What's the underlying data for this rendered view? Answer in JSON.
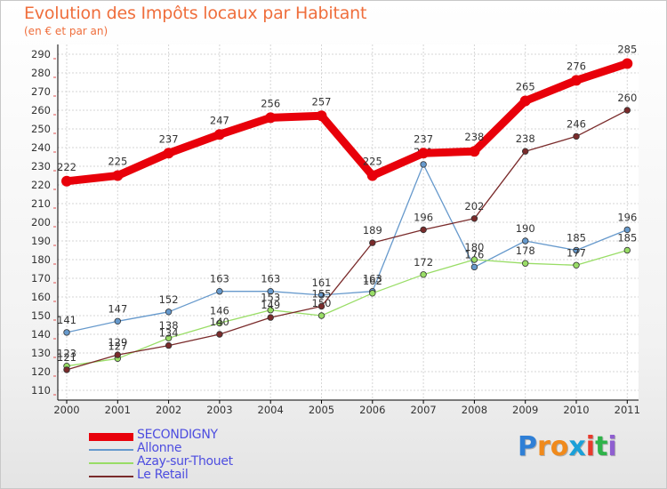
{
  "chart_data": {
    "type": "line",
    "title": "Evolution des Impôts locaux par Habitant",
    "subtitle": "(en € et par an)",
    "xlabel": "",
    "ylabel": "",
    "ylim": [
      110,
      290
    ],
    "ytick_step": 10,
    "grid": true,
    "categories": [
      "2000",
      "2001",
      "2002",
      "2003",
      "2004",
      "2005",
      "2006",
      "2007",
      "2008",
      "2009",
      "2010",
      "2011"
    ],
    "series": [
      {
        "name": "SECONDIGNY",
        "color": "#e8000a",
        "values": [
          222,
          225,
          237,
          247,
          256,
          257,
          225,
          237,
          238,
          265,
          276,
          285
        ]
      },
      {
        "name": "Allonne",
        "color": "#6699cc",
        "values": [
          141,
          147,
          152,
          163,
          163,
          161,
          163,
          231,
          176,
          190,
          185,
          196
        ]
      },
      {
        "name": "Azay-sur-Thouet",
        "color": "#99dd66",
        "values": [
          123,
          127,
          138,
          146,
          153,
          150,
          162,
          172,
          180,
          178,
          177,
          185
        ]
      },
      {
        "name": "Le Retail",
        "color": "#7a2b2b",
        "values": [
          121,
          129,
          134,
          140,
          149,
          155,
          189,
          196,
          202,
          238,
          246,
          260
        ]
      }
    ],
    "legend_position": "bottom-left"
  },
  "brand": {
    "letters": [
      "P",
      "r",
      "o",
      "x",
      "i",
      "t",
      "i"
    ],
    "colors": [
      "#2f7fd6",
      "#f08a1c",
      "#f08a1c",
      "#1ba0d8",
      "#e83a2c",
      "#2fb34a",
      "#8f5fd0"
    ]
  }
}
